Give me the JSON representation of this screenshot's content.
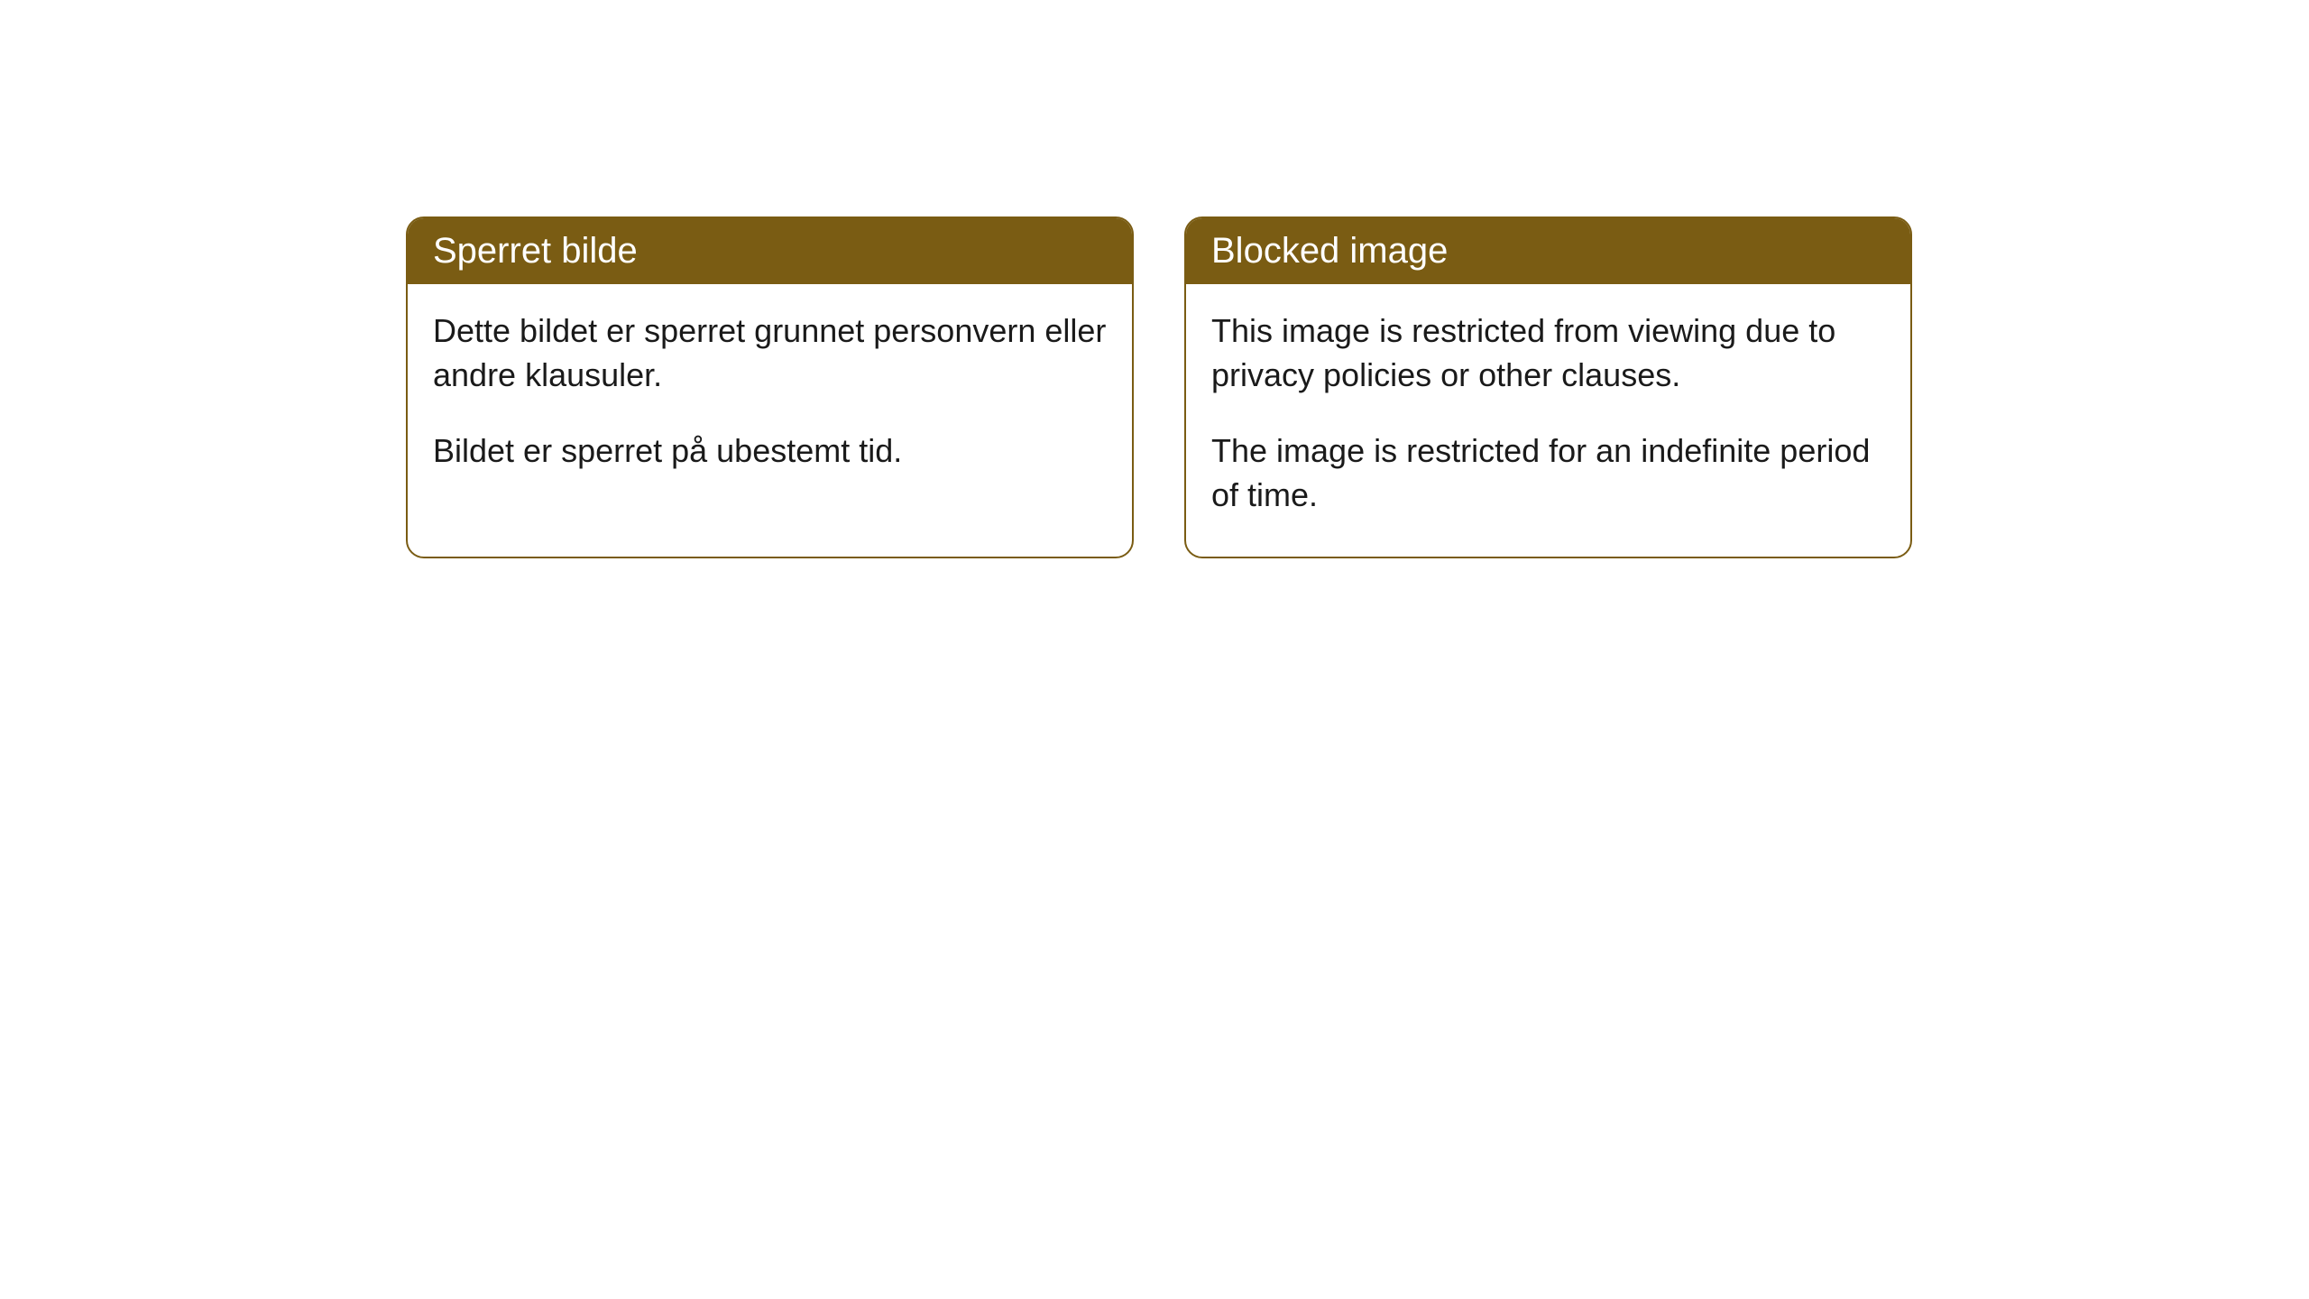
{
  "cards": [
    {
      "title": "Sperret bilde",
      "paragraph1": "Dette bildet er sperret grunnet personvern eller andre klausuler.",
      "paragraph2": "Bildet er sperret på ubestemt tid."
    },
    {
      "title": "Blocked image",
      "paragraph1": "This image is restricted from viewing due to privacy policies or other clauses.",
      "paragraph2": "The image is restricted for an indefinite period of time."
    }
  ],
  "style": {
    "header_bg_color": "#7a5c13",
    "header_text_color": "#ffffff",
    "border_color": "#7a5c13",
    "body_text_color": "#1a1a1a",
    "card_bg_color": "#ffffff",
    "border_radius": 20,
    "header_font_size": 40,
    "body_font_size": 36
  }
}
